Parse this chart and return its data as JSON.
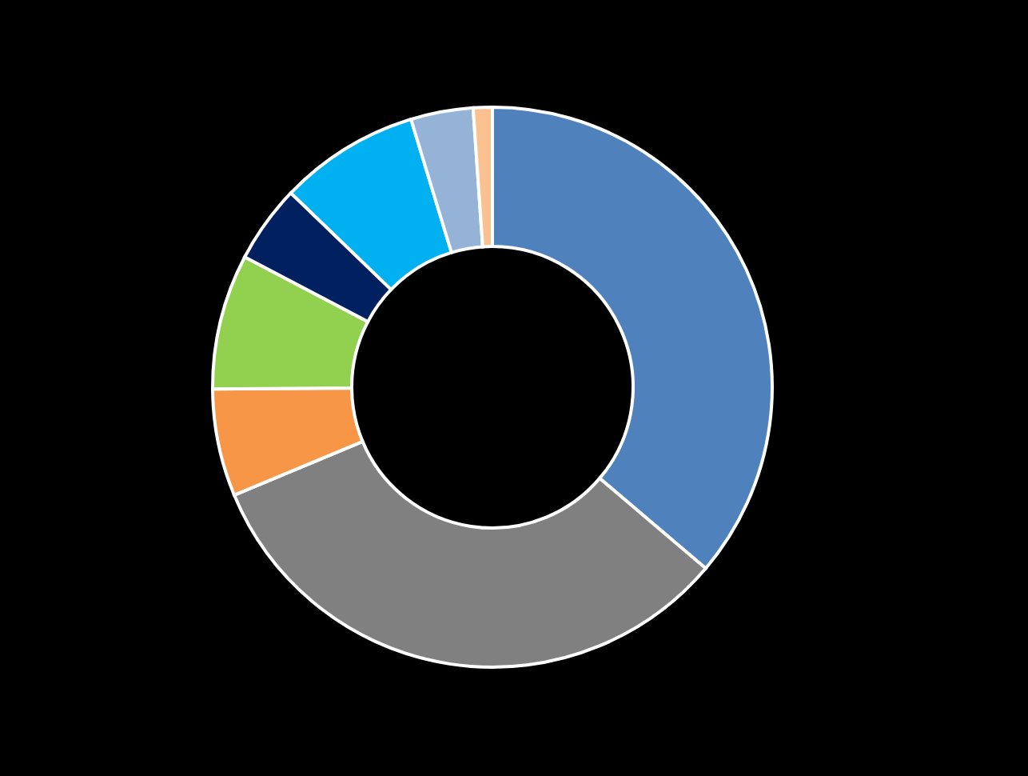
{
  "chart_data": {
    "type": "donut",
    "categories": [
      null,
      null,
      null,
      null,
      null,
      null,
      null,
      null
    ],
    "values": [
      36.2,
      32.5,
      6.2,
      7.8,
      4.5,
      8.1,
      3.6,
      1.1
    ],
    "colors": [
      "#4f81bd",
      "#808080",
      "#f79646",
      "#92d050",
      "#002060",
      "#00b0f0",
      "#95b3d7",
      "#fac090"
    ]
  }
}
